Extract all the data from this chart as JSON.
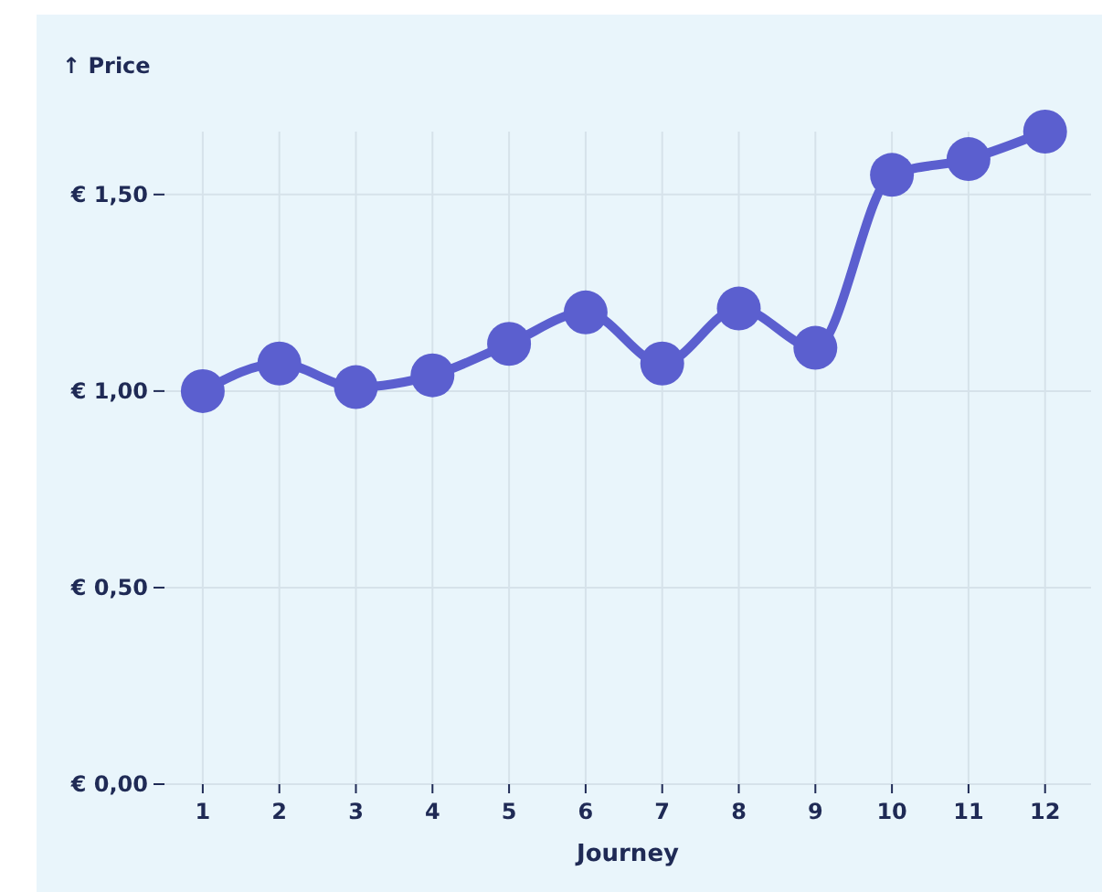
{
  "chart_data": {
    "type": "line",
    "ylabel": "↑ Price",
    "xlabel": "Journey",
    "x": [
      1,
      2,
      3,
      4,
      5,
      6,
      7,
      8,
      9,
      10,
      11,
      12
    ],
    "series": [
      {
        "color": "#5b5fcf",
        "values": [
          1.0,
          1.07,
          1.01,
          1.04,
          1.12,
          1.2,
          1.07,
          1.21,
          1.11,
          1.55,
          1.59,
          1.66
        ]
      }
    ],
    "xlim": [
      0.5,
      12.6
    ],
    "xticks": [
      1,
      2,
      3,
      4,
      5,
      6,
      7,
      8,
      9,
      10,
      11,
      12
    ],
    "ylim": [
      0,
      1.66
    ],
    "yticks": [
      {
        "value": 0,
        "label": "€ 0,00"
      },
      {
        "value": 0.5,
        "label": "€ 0,50"
      },
      {
        "value": 1,
        "label": "€ 1,00"
      },
      {
        "value": 1.5,
        "label": "€ 1,50"
      }
    ],
    "grid": true,
    "marker": "circle",
    "line_style": "solid"
  }
}
